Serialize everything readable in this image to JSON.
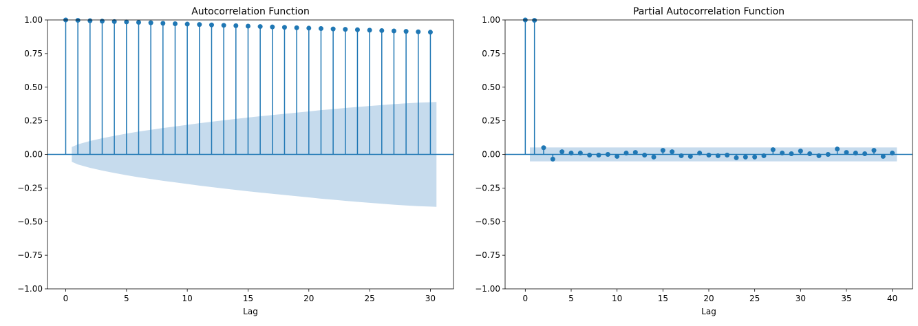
{
  "chart_data": [
    {
      "type": "stem",
      "title": "Autocorrelation Function",
      "xlabel": "Lag",
      "ylabel": "",
      "xlim": [
        -1.5,
        31.9
      ],
      "ylim": [
        -1.0,
        1.0
      ],
      "x_ticks": [
        0,
        5,
        10,
        15,
        20,
        25,
        30
      ],
      "y_ticks": [
        -1.0,
        -0.75,
        -0.5,
        -0.25,
        0.0,
        0.25,
        0.5,
        0.75,
        1.0
      ],
      "y_tick_labels": [
        "−1.00",
        "−0.75",
        "−0.50",
        "−0.25",
        "0.00",
        "0.25",
        "0.50",
        "0.75",
        "1.00"
      ],
      "x": [
        0,
        1,
        2,
        3,
        4,
        5,
        6,
        7,
        8,
        9,
        10,
        11,
        12,
        13,
        14,
        15,
        16,
        17,
        18,
        19,
        20,
        21,
        22,
        23,
        24,
        25,
        26,
        27,
        28,
        29,
        30
      ],
      "values": [
        1.0,
        0.997,
        0.994,
        0.991,
        0.988,
        0.985,
        0.982,
        0.979,
        0.975,
        0.972,
        0.969,
        0.966,
        0.963,
        0.96,
        0.957,
        0.954,
        0.951,
        0.948,
        0.945,
        0.942,
        0.939,
        0.936,
        0.933,
        0.93,
        0.927,
        0.924,
        0.921,
        0.918,
        0.915,
        0.912,
        0.909
      ],
      "confidence_band": {
        "x": [
          0.5,
          1,
          2,
          3,
          4,
          5,
          6,
          7,
          8,
          9,
          10,
          11,
          12,
          13,
          14,
          15,
          16,
          17,
          18,
          19,
          20,
          21,
          22,
          23,
          24,
          25,
          26,
          27,
          28,
          29,
          30,
          30.5
        ],
        "upper": [
          0.055,
          0.075,
          0.1,
          0.12,
          0.138,
          0.155,
          0.17,
          0.183,
          0.196,
          0.208,
          0.22,
          0.232,
          0.243,
          0.254,
          0.264,
          0.274,
          0.284,
          0.293,
          0.302,
          0.311,
          0.32,
          0.329,
          0.337,
          0.345,
          0.353,
          0.36,
          0.367,
          0.374,
          0.38,
          0.385,
          0.388,
          0.39
        ]
      },
      "colors": {
        "stem": "#1f77b4",
        "band": "#c6dbed",
        "zero_line": "#1f77b4"
      }
    },
    {
      "type": "stem",
      "title": "Partial Autocorrelation Function",
      "xlabel": "Lag",
      "ylabel": "",
      "xlim": [
        -2.2,
        42.2
      ],
      "ylim": [
        -1.0,
        1.0
      ],
      "x_ticks": [
        0,
        5,
        10,
        15,
        20,
        25,
        30,
        35,
        40
      ],
      "y_ticks": [
        -1.0,
        -0.75,
        -0.5,
        -0.25,
        0.0,
        0.25,
        0.5,
        0.75,
        1.0
      ],
      "y_tick_labels": [
        "−1.00",
        "−0.75",
        "−0.50",
        "−0.25",
        "0.00",
        "0.25",
        "0.50",
        "0.75",
        "1.00"
      ],
      "x": [
        0,
        1,
        2,
        3,
        4,
        5,
        6,
        7,
        8,
        9,
        10,
        11,
        12,
        13,
        14,
        15,
        16,
        17,
        18,
        19,
        20,
        21,
        22,
        23,
        24,
        25,
        26,
        27,
        28,
        29,
        30,
        31,
        32,
        33,
        34,
        35,
        36,
        37,
        38,
        39,
        40
      ],
      "values": [
        1.0,
        0.997,
        0.05,
        -0.035,
        0.02,
        0.01,
        0.01,
        -0.005,
        -0.005,
        0.0,
        -0.015,
        0.01,
        0.015,
        -0.005,
        -0.02,
        0.03,
        0.02,
        -0.01,
        -0.015,
        0.01,
        -0.005,
        -0.01,
        -0.005,
        -0.025,
        -0.02,
        -0.02,
        -0.01,
        0.035,
        0.01,
        0.005,
        0.025,
        0.005,
        -0.01,
        0.0,
        0.04,
        0.015,
        0.01,
        0.005,
        0.03,
        -0.015,
        0.01
      ],
      "confidence_band": {
        "x": [
          0.5,
          40.5
        ],
        "upper": [
          0.052,
          0.052
        ]
      },
      "colors": {
        "stem": "#1f77b4",
        "band": "#c6dbed",
        "zero_line": "#1f77b4"
      }
    }
  ]
}
